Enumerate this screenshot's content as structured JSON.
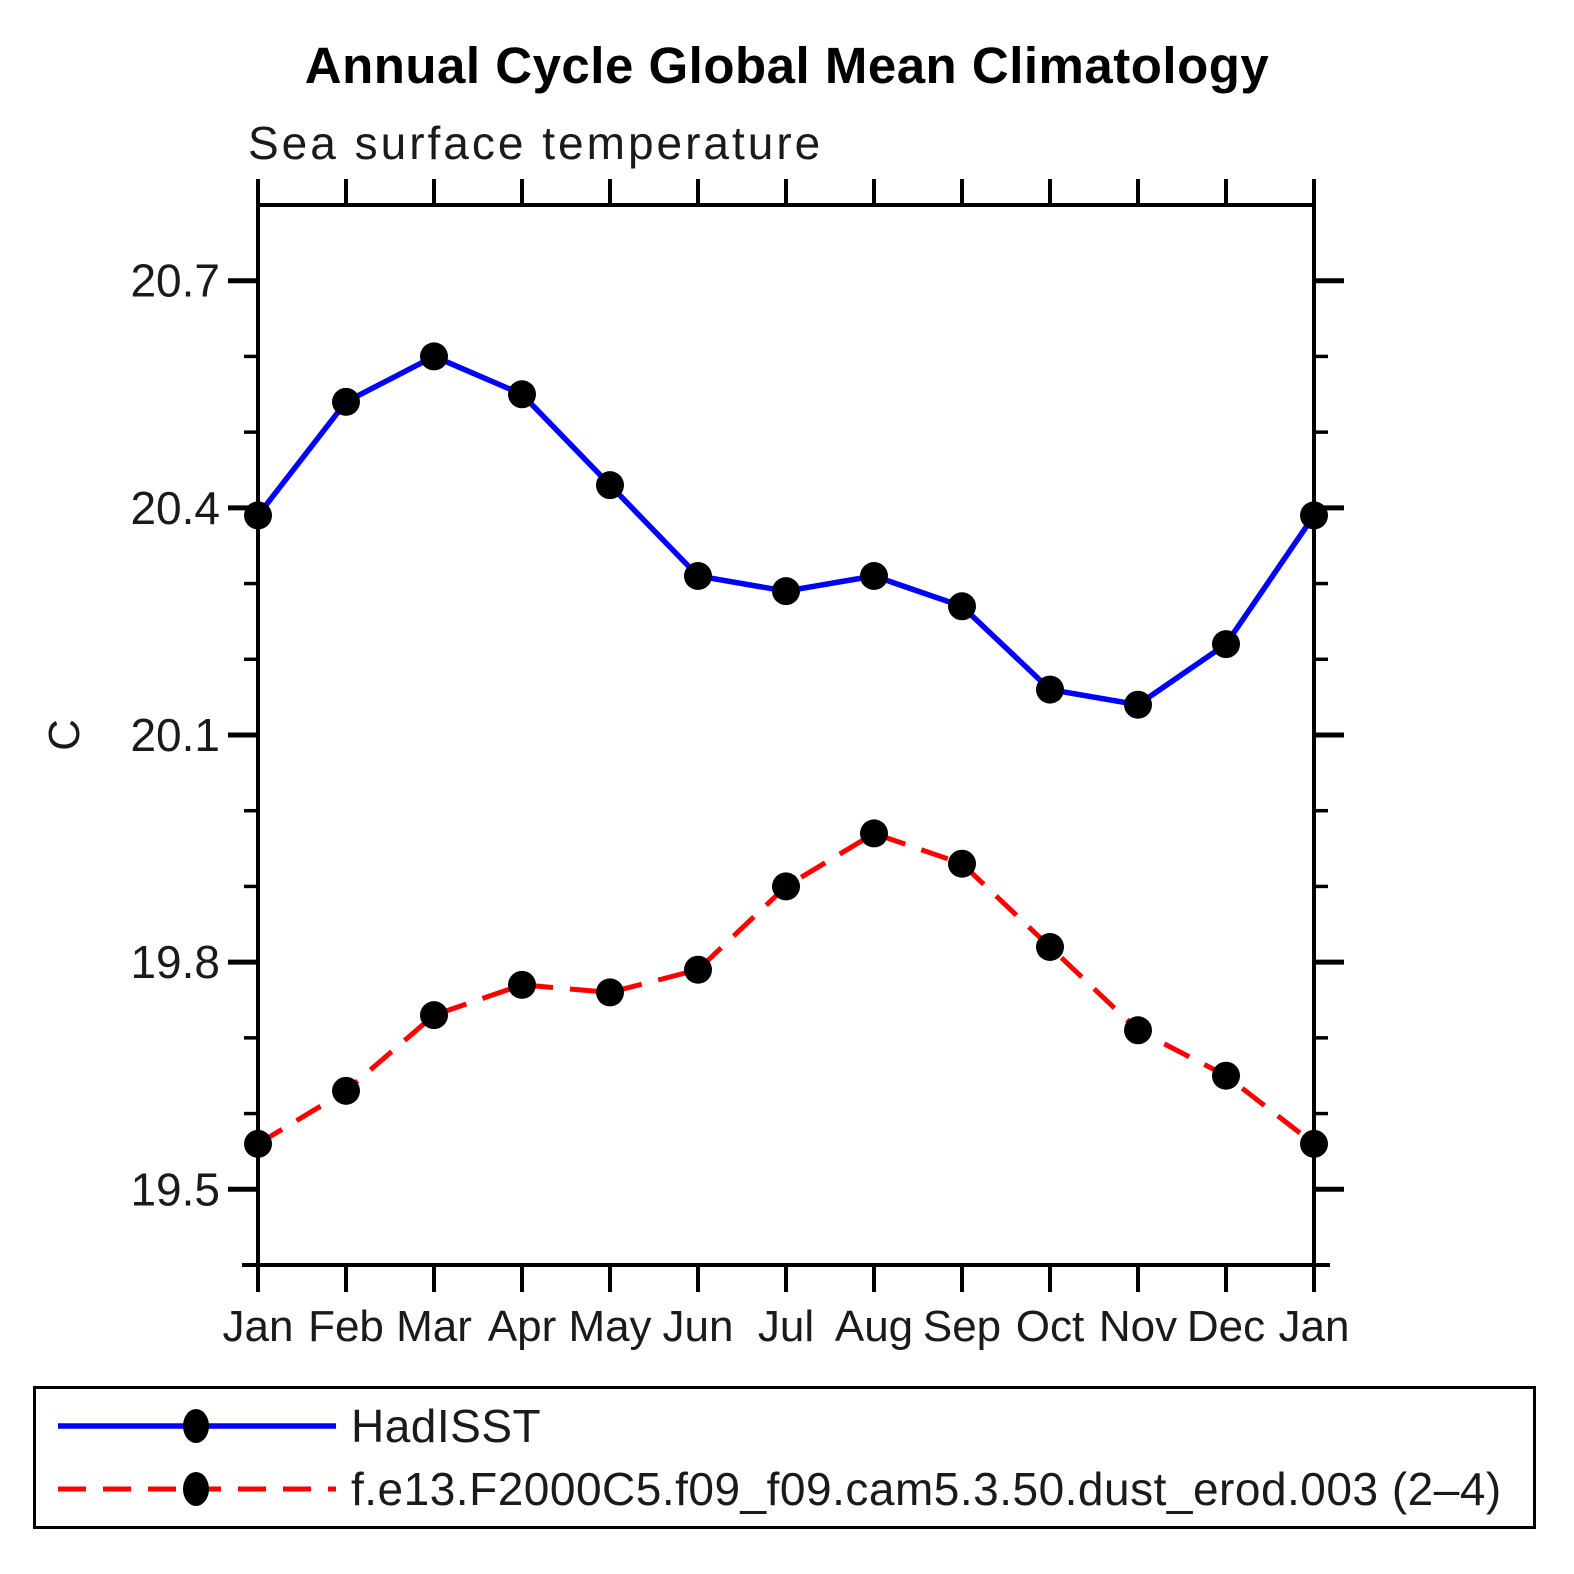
{
  "title": "Annual Cycle Global Mean Climatology",
  "subtitle": "Sea surface temperature",
  "ylabel": "C",
  "legend": [
    {
      "label": "HadISST",
      "color": "#0000ff",
      "style": "solid",
      "marker": "black-dot"
    },
    {
      "label": "f.e13.F2000C5.f09_f09.cam5.3.50.dust_erod.003 (2–4)",
      "color": "#ff0000",
      "style": "dashed",
      "marker": "black-dot"
    }
  ],
  "chart_data": {
    "type": "line",
    "categories": [
      "Jan",
      "Feb",
      "Mar",
      "Apr",
      "May",
      "Jun",
      "Jul",
      "Aug",
      "Sep",
      "Oct",
      "Nov",
      "Dec",
      "Jan"
    ],
    "series": [
      {
        "name": "HadISST",
        "color": "#0000ff",
        "dash": "solid",
        "marker": "black-dot",
        "values": [
          20.39,
          20.54,
          20.6,
          20.55,
          20.43,
          20.31,
          20.29,
          20.31,
          20.27,
          20.16,
          20.14,
          20.22,
          20.39
        ]
      },
      {
        "name": "f.e13.F2000C5.f09_f09.cam5.3.50.dust_erod.003 (2–4)",
        "color": "#ff0000",
        "dash": "dashed",
        "marker": "black-dot",
        "values": [
          19.56,
          19.63,
          19.73,
          19.77,
          19.76,
          19.79,
          19.9,
          19.97,
          19.93,
          19.82,
          19.71,
          19.65,
          19.56
        ]
      }
    ],
    "title": "Annual Cycle Global Mean Climatology",
    "subtitle": "Sea surface temperature",
    "xlabel": "",
    "ylabel": "C",
    "ylim": [
      19.4,
      20.8
    ],
    "ytick_major": [
      19.5,
      19.8,
      20.1,
      20.4,
      20.7
    ],
    "ytick_labels": [
      "19.5",
      "19.8",
      "20.1",
      "20.4",
      "20.7"
    ],
    "ytick_minor_step": 0.1,
    "grid": false,
    "legend_position": "bottom-box"
  }
}
